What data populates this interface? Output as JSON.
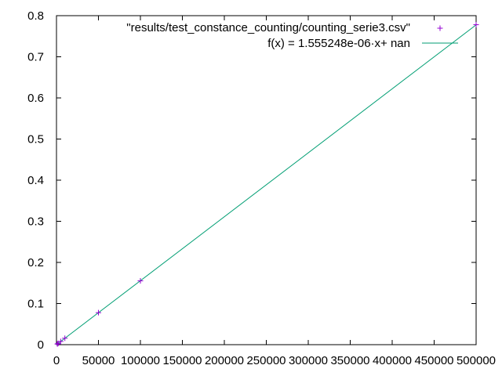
{
  "chart_data": {
    "type": "scatter",
    "title": "",
    "xlabel": "",
    "ylabel": "",
    "xlim": [
      0,
      500000
    ],
    "ylim": [
      0,
      0.8
    ],
    "grid": false,
    "legend_position": "top-right",
    "x_ticks": [
      0,
      50000,
      100000,
      150000,
      200000,
      250000,
      300000,
      350000,
      400000,
      450000,
      500000
    ],
    "x_tick_labels": [
      "0",
      "50000",
      "100000",
      "150000",
      "200000",
      "250000",
      "300000",
      "350000",
      "400000",
      "450000",
      "500000"
    ],
    "y_ticks": [
      0,
      0.1,
      0.2,
      0.3,
      0.4,
      0.5,
      0.6,
      0.7,
      0.8
    ],
    "y_tick_labels": [
      "0",
      "0.1",
      "0.2",
      "0.3",
      "0.4",
      "0.5",
      "0.6",
      "0.7",
      "0.8"
    ],
    "series": [
      {
        "name": "\"results/test_constance_counting/counting_serie3.csv\"",
        "kind": "points",
        "marker": "+",
        "color": "#9400d3",
        "x": [
          1000,
          2000,
          5000,
          10000,
          50000,
          100000,
          500000
        ],
        "y": [
          0.0016,
          0.0031,
          0.0078,
          0.0156,
          0.0778,
          0.1552,
          0.778
        ]
      },
      {
        "name": "f(x) = 1.555248e-06·x+ nan",
        "kind": "line",
        "color": "#009e73",
        "slope": 1.555248e-06,
        "x": [
          0,
          500000
        ]
      }
    ]
  }
}
